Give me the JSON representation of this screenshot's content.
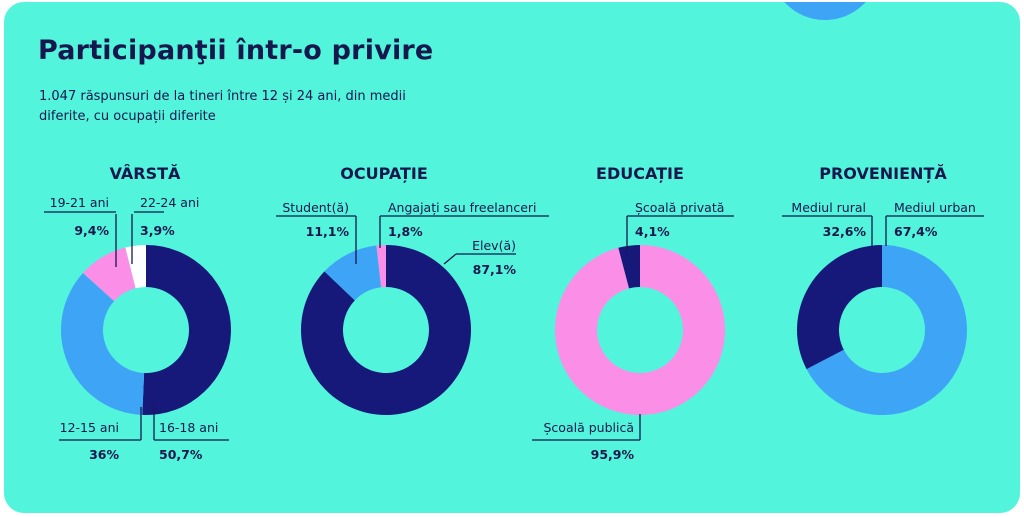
{
  "title": "Participanţii într-o privire",
  "subtitle": "1.047 răspunsuri de la tineri între 12 și 24 ani, din medii diferite, cu ocupații diferite",
  "colors": {
    "background": "#52f5dc",
    "navy": "#16187a",
    "blue": "#3ea4f6",
    "pink": "#fb8ee6",
    "white": "#ffffff",
    "text": "#16184d"
  },
  "chart_data": [
    {
      "type": "pie",
      "title": "VÂRSTĂ",
      "slices": [
        {
          "label": "16-18 ani",
          "value": 50.7,
          "value_label": "50,7%",
          "color": "#16187a"
        },
        {
          "label": "12-15 ani",
          "value": 36,
          "value_label": "36%",
          "color": "#3ea4f6"
        },
        {
          "label": "19-21 ani",
          "value": 9.4,
          "value_label": "9,4%",
          "color": "#fb8ee6"
        },
        {
          "label": "22-24 ani",
          "value": 3.9,
          "value_label": "3,9%",
          "color": "#ffffff"
        }
      ]
    },
    {
      "type": "pie",
      "title": "OCUPAȚIE",
      "slices": [
        {
          "label": "Elev(ă)",
          "value": 87.1,
          "value_label": "87,1%",
          "color": "#16187a"
        },
        {
          "label": "Student(ă)",
          "value": 11.1,
          "value_label": "11,1%",
          "color": "#3ea4f6"
        },
        {
          "label": "Angajați sau freelanceri",
          "value": 1.8,
          "value_label": "1,8%",
          "color": "#fb8ee6"
        }
      ]
    },
    {
      "type": "pie",
      "title": "EDUCAȚIE",
      "slices": [
        {
          "label": "Școală publică",
          "value": 95.9,
          "value_label": "95,9%",
          "color": "#fb8ee6"
        },
        {
          "label": "Școală privată",
          "value": 4.1,
          "value_label": "4,1%",
          "color": "#16187a"
        }
      ]
    },
    {
      "type": "pie",
      "title": "PROVENIENȚĂ",
      "slices": [
        {
          "label": "Mediul urban",
          "value": 67.4,
          "value_label": "67,4%",
          "color": "#3ea4f6"
        },
        {
          "label": "Mediul rural",
          "value": 32.6,
          "value_label": "32,6%",
          "color": "#16187a"
        }
      ]
    }
  ]
}
